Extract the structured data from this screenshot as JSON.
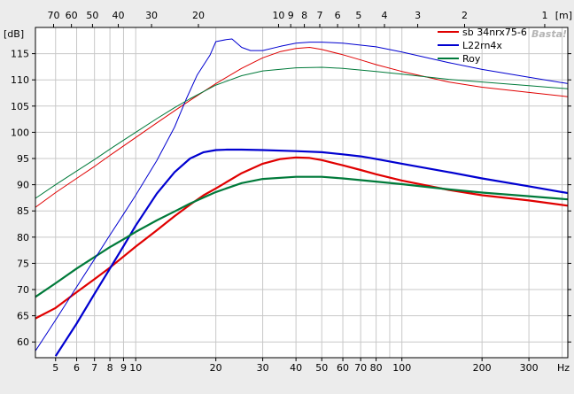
{
  "chart_data": {
    "type": "line",
    "title": "",
    "xlabel": "Hz",
    "ylabel": "[dB]",
    "top_axis_label": "[m]",
    "x_scale": "log",
    "xlim": [
      4.2,
      420
    ],
    "ylim": [
      57,
      120
    ],
    "grid": true,
    "legend_position": "top-right",
    "watermark": "Basta!",
    "x_ticks": [
      5,
      6,
      7,
      8,
      9,
      10,
      20,
      30,
      40,
      50,
      60,
      70,
      80,
      100,
      200,
      300
    ],
    "y_ticks": [
      60,
      65,
      70,
      75,
      80,
      85,
      90,
      95,
      100,
      105,
      110,
      115
    ],
    "top_ticks": [
      70,
      60,
      50,
      40,
      30,
      20,
      10,
      9,
      8,
      7,
      6,
      5,
      4,
      3,
      2,
      1
    ],
    "series": [
      {
        "name": "sb 34nrx75-6",
        "color": "#e00000",
        "group": "response",
        "x": [
          4.2,
          5,
          6,
          7,
          8,
          9,
          10,
          12,
          14,
          16,
          18,
          20,
          25,
          30,
          35,
          40,
          45,
          50,
          60,
          70,
          80,
          100,
          150,
          200,
          300,
          420
        ],
        "y": [
          64.5,
          66.5,
          69.5,
          72,
          74.2,
          76.3,
          78.2,
          81.3,
          84,
          86.2,
          88,
          89.3,
          92.2,
          94,
          94.9,
          95.2,
          95.1,
          94.7,
          93.7,
          92.8,
          92,
          90.8,
          89,
          88,
          87,
          86
        ]
      },
      {
        "name": "L22rn4x",
        "color": "#0000d0",
        "group": "response",
        "x": [
          5,
          6,
          7,
          8,
          9,
          10,
          12,
          14,
          16,
          18,
          20,
          22,
          25,
          30,
          40,
          50,
          60,
          70,
          80,
          100,
          150,
          200,
          300,
          420
        ],
        "y": [
          57.3,
          63.5,
          69.2,
          74,
          78.3,
          82.2,
          88.3,
          92.4,
          95,
          96.2,
          96.6,
          96.7,
          96.7,
          96.6,
          96.4,
          96.2,
          95.8,
          95.4,
          94.9,
          94,
          92.4,
          91.2,
          89.7,
          88.4
        ]
      },
      {
        "name": "Roy",
        "color": "#007a3a",
        "group": "response",
        "x": [
          4.2,
          5,
          6,
          7,
          8,
          9,
          10,
          12,
          14,
          16,
          20,
          25,
          30,
          40,
          50,
          60,
          80,
          100,
          150,
          200,
          300,
          420
        ],
        "y": [
          68.6,
          71.2,
          74,
          76.2,
          78.1,
          79.6,
          81,
          83.2,
          84.9,
          86.4,
          88.6,
          90.3,
          91.1,
          91.5,
          91.5,
          91.2,
          90.6,
          90.1,
          89.1,
          88.5,
          87.8,
          87.2
        ]
      },
      {
        "name": "",
        "color": "#e00000",
        "group": "spl",
        "x": [
          4.2,
          5,
          6,
          7,
          8,
          9,
          10,
          12,
          14,
          16,
          20,
          25,
          30,
          35,
          40,
          45,
          50,
          60,
          70,
          80,
          100,
          150,
          200,
          300,
          420
        ],
        "y": [
          85.7,
          88.5,
          91.2,
          93.5,
          95.6,
          97.4,
          99,
          101.8,
          104.1,
          106.1,
          109.3,
          112.2,
          114.2,
          115.4,
          116,
          116.2,
          115.8,
          114.8,
          113.8,
          112.9,
          111.6,
          109.6,
          108.6,
          107.6,
          106.8
        ]
      },
      {
        "name": "",
        "color": "#0000d0",
        "group": "spl",
        "x": [
          4.2,
          5,
          6,
          7,
          8,
          9,
          10,
          12,
          14,
          15.5,
          17,
          19,
          20,
          22,
          23,
          25,
          27,
          30,
          35,
          40,
          45,
          50,
          60,
          80,
          100,
          150,
          200,
          300,
          420
        ],
        "y": [
          58.3,
          64.2,
          70.5,
          75.8,
          80.4,
          84.4,
          88,
          94.6,
          101,
          106.4,
          110.9,
          114.7,
          117.3,
          117.7,
          117.8,
          116.2,
          115.6,
          115.6,
          116.4,
          117,
          117.2,
          117.2,
          117,
          116.3,
          115.3,
          113.3,
          112,
          110.5,
          109.3
        ]
      },
      {
        "name": "",
        "color": "#007a3a",
        "group": "spl",
        "x": [
          4.2,
          5,
          6,
          7,
          8,
          9,
          10,
          12,
          14,
          16,
          20,
          25,
          30,
          40,
          50,
          60,
          80,
          100,
          150,
          200,
          300,
          420
        ],
        "y": [
          87.4,
          90,
          92.6,
          94.8,
          96.8,
          98.5,
          100,
          102.6,
          104.7,
          106.4,
          109,
          110.8,
          111.7,
          112.3,
          112.4,
          112.2,
          111.6,
          111.1,
          110.1,
          109.6,
          108.9,
          108.3
        ]
      }
    ]
  }
}
